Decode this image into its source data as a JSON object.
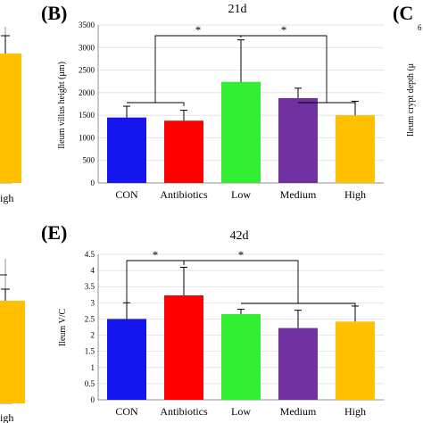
{
  "panels": {
    "B": {
      "letter": "(B)",
      "title": "21d",
      "ylabel": "Ileum villus height (μm)",
      "ylim": [
        0,
        3500
      ],
      "yticks": [
        0,
        500,
        1000,
        1500,
        2000,
        2500,
        3000,
        3500
      ]
    },
    "C": {
      "letter": "(C",
      "ylabel_partial": "Ileum crypt depth (μ",
      "ytick_partial": "6"
    },
    "E": {
      "letter": "(E)",
      "title": "42d",
      "ylabel": "Ileum V/C",
      "ylim": [
        0,
        4.5
      ],
      "yticks": [
        0,
        0.5,
        1,
        1.5,
        2,
        2.5,
        3,
        3.5,
        4,
        4.5
      ],
      "ytick_labels": [
        "0",
        "0.5",
        "1",
        "1.5",
        "2",
        "2.5",
        "3",
        "3.5",
        "4",
        "4.5"
      ]
    },
    "left_top": {
      "category_partial": "igh"
    },
    "left_bottom": {
      "category_partial": "igh"
    }
  },
  "chart_data": [
    {
      "type": "bar",
      "panel": "B",
      "title": "21d",
      "xlabel": "",
      "ylabel": "Ileum villus height (μm)",
      "ylim": [
        0,
        3500
      ],
      "grid": true,
      "categories": [
        "CON",
        "Antibiotics",
        "Low",
        "Medium",
        "High"
      ],
      "values": [
        1450,
        1380,
        2240,
        1880,
        1500
      ],
      "errors": [
        250,
        230,
        930,
        220,
        310
      ],
      "colors": [
        "#1515f0",
        "#ff0000",
        "#33ee33",
        "#7030a0",
        "#ffc000"
      ],
      "annotations": [
        "*",
        "*"
      ]
    },
    {
      "type": "bar",
      "panel": "E",
      "title": "42d",
      "xlabel": "",
      "ylabel": "Ileum V/C",
      "ylim": [
        0,
        4.5
      ],
      "grid": true,
      "categories": [
        "CON",
        "Antibiotics",
        "Low",
        "Medium",
        "High"
      ],
      "values": [
        2.5,
        3.23,
        2.65,
        2.22,
        2.42
      ],
      "errors": [
        0.5,
        0.87,
        0.15,
        0.55,
        0.48
      ],
      "colors": [
        "#1515f0",
        "#ff0000",
        "#33ee33",
        "#7030a0",
        "#ffc000"
      ],
      "annotations": [
        "*",
        "*"
      ]
    }
  ]
}
